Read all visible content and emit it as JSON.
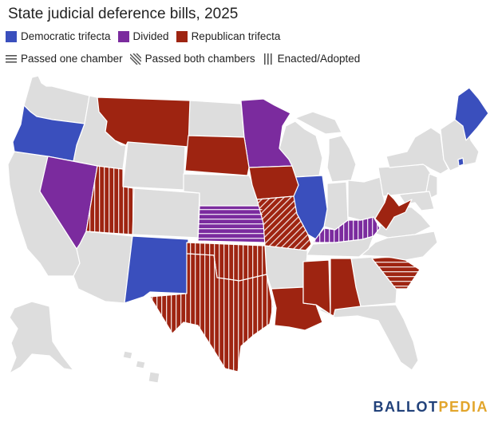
{
  "title": "State judicial deference bills, 2025",
  "legend": {
    "fills": [
      {
        "label": "Democratic trifecta",
        "color": "#3a4fbd"
      },
      {
        "label": "Divided",
        "color": "#7b2b9e"
      },
      {
        "label": "Republican trifecta",
        "color": "#9e2411"
      }
    ],
    "patterns": [
      {
        "label": "Passed one chamber",
        "pattern": "horizontal-lines"
      },
      {
        "label": "Passed both chambers",
        "pattern": "diagonal-lines"
      },
      {
        "label": "Enacted/Adopted",
        "pattern": "vertical-lines"
      }
    ]
  },
  "colors": {
    "state_default": "#dddddd",
    "border": "#ffffff",
    "democratic": "#3a4fbd",
    "divided": "#7b2b9e",
    "republican": "#9e2411"
  },
  "states": [
    {
      "name": "Oregon",
      "status": "Democratic trifecta",
      "pattern": "none"
    },
    {
      "name": "Maine",
      "status": "Democratic trifecta",
      "pattern": "none"
    },
    {
      "name": "Illinois",
      "status": "Democratic trifecta",
      "pattern": "none"
    },
    {
      "name": "New Mexico",
      "status": "Democratic trifecta",
      "pattern": "none"
    },
    {
      "name": "Rhode Island",
      "status": "Democratic trifecta",
      "pattern": "none"
    },
    {
      "name": "Nevada",
      "status": "Divided",
      "pattern": "none"
    },
    {
      "name": "Minnesota",
      "status": "Divided",
      "pattern": "none"
    },
    {
      "name": "Kansas",
      "status": "Divided",
      "pattern": "Passed one chamber"
    },
    {
      "name": "Kentucky",
      "status": "Divided",
      "pattern": "Enacted/Adopted"
    },
    {
      "name": "Montana",
      "status": "Republican trifecta",
      "pattern": "none"
    },
    {
      "name": "South Dakota",
      "status": "Republican trifecta",
      "pattern": "none"
    },
    {
      "name": "Iowa",
      "status": "Republican trifecta",
      "pattern": "none"
    },
    {
      "name": "Utah",
      "status": "Republican trifecta",
      "pattern": "Enacted/Adopted"
    },
    {
      "name": "Missouri",
      "status": "Republican trifecta",
      "pattern": "Passed both chambers"
    },
    {
      "name": "Oklahoma",
      "status": "Republican trifecta",
      "pattern": "Enacted/Adopted"
    },
    {
      "name": "Texas",
      "status": "Republican trifecta",
      "pattern": "Enacted/Adopted"
    },
    {
      "name": "Louisiana",
      "status": "Republican trifecta",
      "pattern": "none"
    },
    {
      "name": "Mississippi",
      "status": "Republican trifecta",
      "pattern": "none"
    },
    {
      "name": "Alabama",
      "status": "Republican trifecta",
      "pattern": "none"
    },
    {
      "name": "West Virginia",
      "status": "Republican trifecta",
      "pattern": "none"
    },
    {
      "name": "South Carolina",
      "status": "Republican trifecta",
      "pattern": "Passed one chamber"
    }
  ],
  "logo": {
    "part1": "BALLOT",
    "part2": "PEDIA"
  }
}
